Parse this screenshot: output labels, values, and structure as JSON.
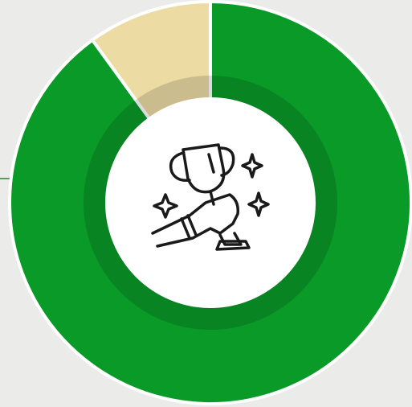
{
  "chart_data": {
    "type": "pie",
    "values": [
      90,
      10
    ],
    "colors": [
      "#0a9a28",
      "#ecdba3"
    ]
  }
}
